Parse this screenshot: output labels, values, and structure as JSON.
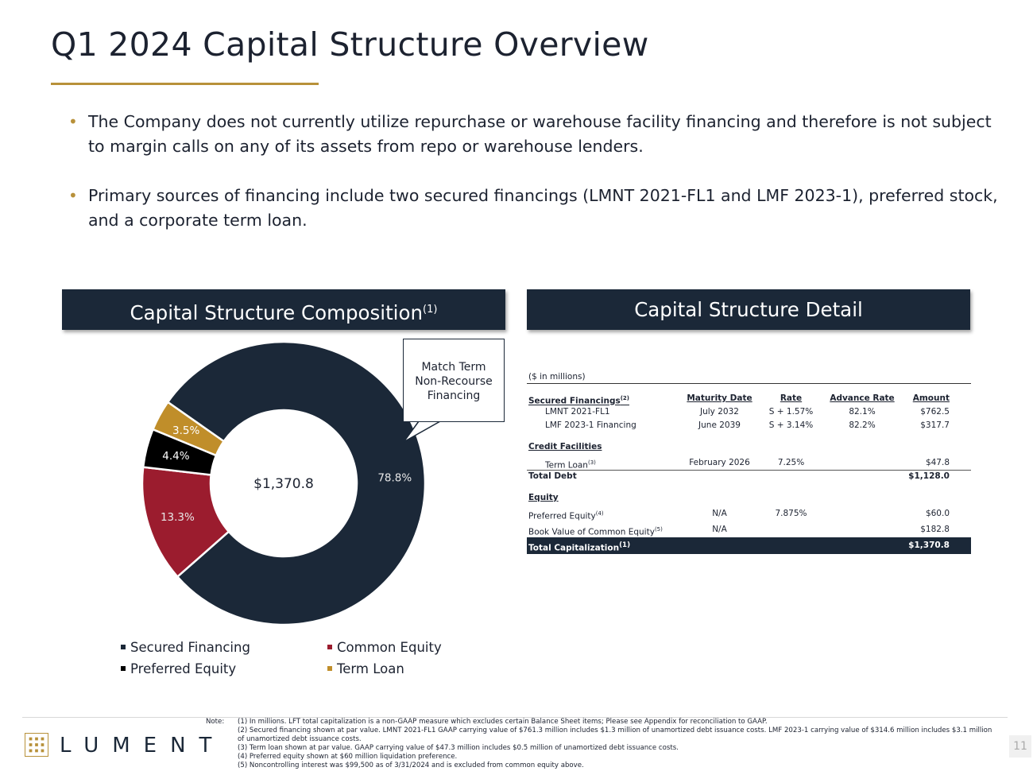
{
  "title": "Q1 2024 Capital Structure Overview",
  "bullets": [
    "The Company does not currently utilize repurchase or warehouse facility financing and therefore is not subject to margin calls on any of its assets from repo or warehouse lenders.",
    "Primary sources of financing include two secured financings (LMNT 2021-FL1 and LMF 2023-1), preferred stock, and a corporate term loan."
  ],
  "left_banner": {
    "label": "Capital Structure Composition",
    "sup": "(1)"
  },
  "right_banner": {
    "label": "Capital Structure Detail"
  },
  "callout": [
    "Match Term",
    "Non-Recourse",
    "Financing"
  ],
  "chart_data": {
    "type": "pie",
    "donut": true,
    "center_label": "$1,370.8",
    "categories": [
      "Secured Financing",
      "Common Equity",
      "Preferred Equity",
      "Term Loan"
    ],
    "values": [
      78.8,
      13.3,
      4.4,
      3.5
    ],
    "labels": [
      "78.8%",
      "13.3%",
      "4.4%",
      "3.5%"
    ],
    "colors": [
      "#1b2838",
      "#9b1c2e",
      "#000000",
      "#c08e2a"
    ],
    "legend_position": "bottom"
  },
  "detail": {
    "unit_label": "($ in millions)",
    "headers": {
      "col0": "Secured Financings",
      "col0_sup": "(2)",
      "maturity": "Maturity Date",
      "rate": "Rate",
      "advance": "Advance Rate",
      "amount": "Amount"
    },
    "secured_rows": [
      {
        "name": "LMNT 2021-FL1",
        "maturity": "July 2032",
        "rate": "S + 1.57%",
        "advance": "82.1%",
        "amount": "$762.5"
      },
      {
        "name": "LMF 2023-1 Financing",
        "maturity": "June 2039",
        "rate": "S + 3.14%",
        "advance": "82.2%",
        "amount": "$317.7"
      }
    ],
    "credit_header": "Credit Facilities",
    "term_loan": {
      "name": "Term Loan",
      "sup": "(3)",
      "maturity": "February 2026",
      "rate": "7.25%",
      "amount": "$47.8"
    },
    "total_debt": {
      "label": "Total Debt",
      "amount": "$1,128.0"
    },
    "equity_header": "Equity",
    "preferred": {
      "name": "Preferred Equity",
      "sup": "(4)",
      "maturity": "N/A",
      "rate": "7.875%",
      "amount": "$60.0"
    },
    "common": {
      "name": "Book Value of Common Equity",
      "sup": "(5)",
      "maturity": "N/A",
      "amount": "$182.8"
    },
    "total_cap": {
      "label": "Total Capitalization",
      "sup": "(1)",
      "amount": "$1,370.8"
    }
  },
  "notes_label": "Note:",
  "notes": [
    "(1) In millions. LFT total capitalization is a non-GAAP measure which excludes certain Balance Sheet items; Please see Appendix for reconciliation to GAAP.",
    "(2) Secured financing shown at par value. LMNT 2021-FL1 GAAP carrying value of $761.3 million includes $1.3 million of unamortized debt issuance costs. LMF 2023-1 carrying value of $314.6 million includes $3.1 million of unamortized debt issuance costs.",
    "(3) Term loan shown at par value. GAAP carrying value of $47.3 million includes $0.5 million of unamortized debt issuance costs.",
    "(4) Preferred equity shown at $60 million liquidation preference.",
    "(5) Noncontrolling interest was $99,500 as of 3/31/2024 and is excluded from common equity above."
  ],
  "logo_text": "LUMENT",
  "page_number": "11"
}
